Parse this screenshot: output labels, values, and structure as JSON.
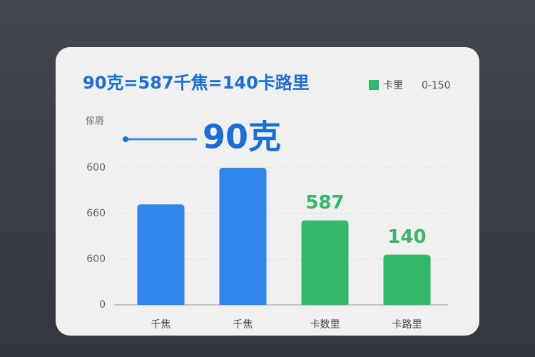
{
  "chart_data": {
    "type": "bar",
    "title": "90克=587千焦=140卡路里",
    "ylabel": "傢脣",
    "highlight": "90克",
    "legend": {
      "name": "卡里",
      "color": "#33b86a",
      "range": "0-150"
    },
    "categories": [
      "千焦",
      "千焦",
      "卡数里",
      "卡路里"
    ],
    "values": [
      2.2,
      3.0,
      1.85,
      1.1
    ],
    "colors": [
      "#2f86eb",
      "#2f86eb",
      "#33b86a",
      "#33b86a"
    ],
    "annotations": [
      null,
      null,
      "587",
      "140"
    ],
    "ylim": [
      0,
      4
    ],
    "yticks": [
      {
        "value": 0,
        "label": "0"
      },
      {
        "value": 1,
        "label": "600"
      },
      {
        "value": 2,
        "label": "660"
      },
      {
        "value": 3,
        "label": "600"
      }
    ],
    "grid": true
  }
}
